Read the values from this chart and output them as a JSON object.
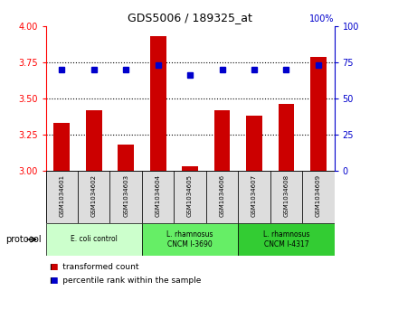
{
  "title": "GDS5006 / 189325_at",
  "samples": [
    "GSM1034601",
    "GSM1034602",
    "GSM1034603",
    "GSM1034604",
    "GSM1034605",
    "GSM1034606",
    "GSM1034607",
    "GSM1034608",
    "GSM1034609"
  ],
  "transformed_counts": [
    3.33,
    3.42,
    3.18,
    3.93,
    3.03,
    3.42,
    3.38,
    3.46,
    3.79
  ],
  "percentile_ranks": [
    70,
    70,
    70,
    73,
    66,
    70,
    70,
    70,
    73
  ],
  "ylim_left": [
    3.0,
    4.0
  ],
  "ylim_right": [
    0,
    100
  ],
  "yticks_left": [
    3.0,
    3.25,
    3.5,
    3.75,
    4.0
  ],
  "yticks_right": [
    0,
    25,
    50,
    75,
    100
  ],
  "bar_color": "#cc0000",
  "dot_color": "#0000cc",
  "proto_colors": [
    "#ccffcc",
    "#66ee66",
    "#33cc33"
  ],
  "proto_texts": [
    "E. coli control",
    "L. rhamnosus\nCNCM I-3690",
    "L. rhamnosus\nCNCM I-4317"
  ],
  "proto_ranges": [
    [
      0,
      3
    ],
    [
      3,
      6
    ],
    [
      6,
      9
    ]
  ],
  "protocol_label": "protocol",
  "bar_width": 0.5,
  "gridline_ticks": [
    3.25,
    3.5,
    3.75
  ],
  "sample_box_color": "#dddddd",
  "legend_items": [
    {
      "label": "transformed count",
      "color": "#cc0000"
    },
    {
      "label": "percentile rank within the sample",
      "color": "#0000cc"
    }
  ]
}
